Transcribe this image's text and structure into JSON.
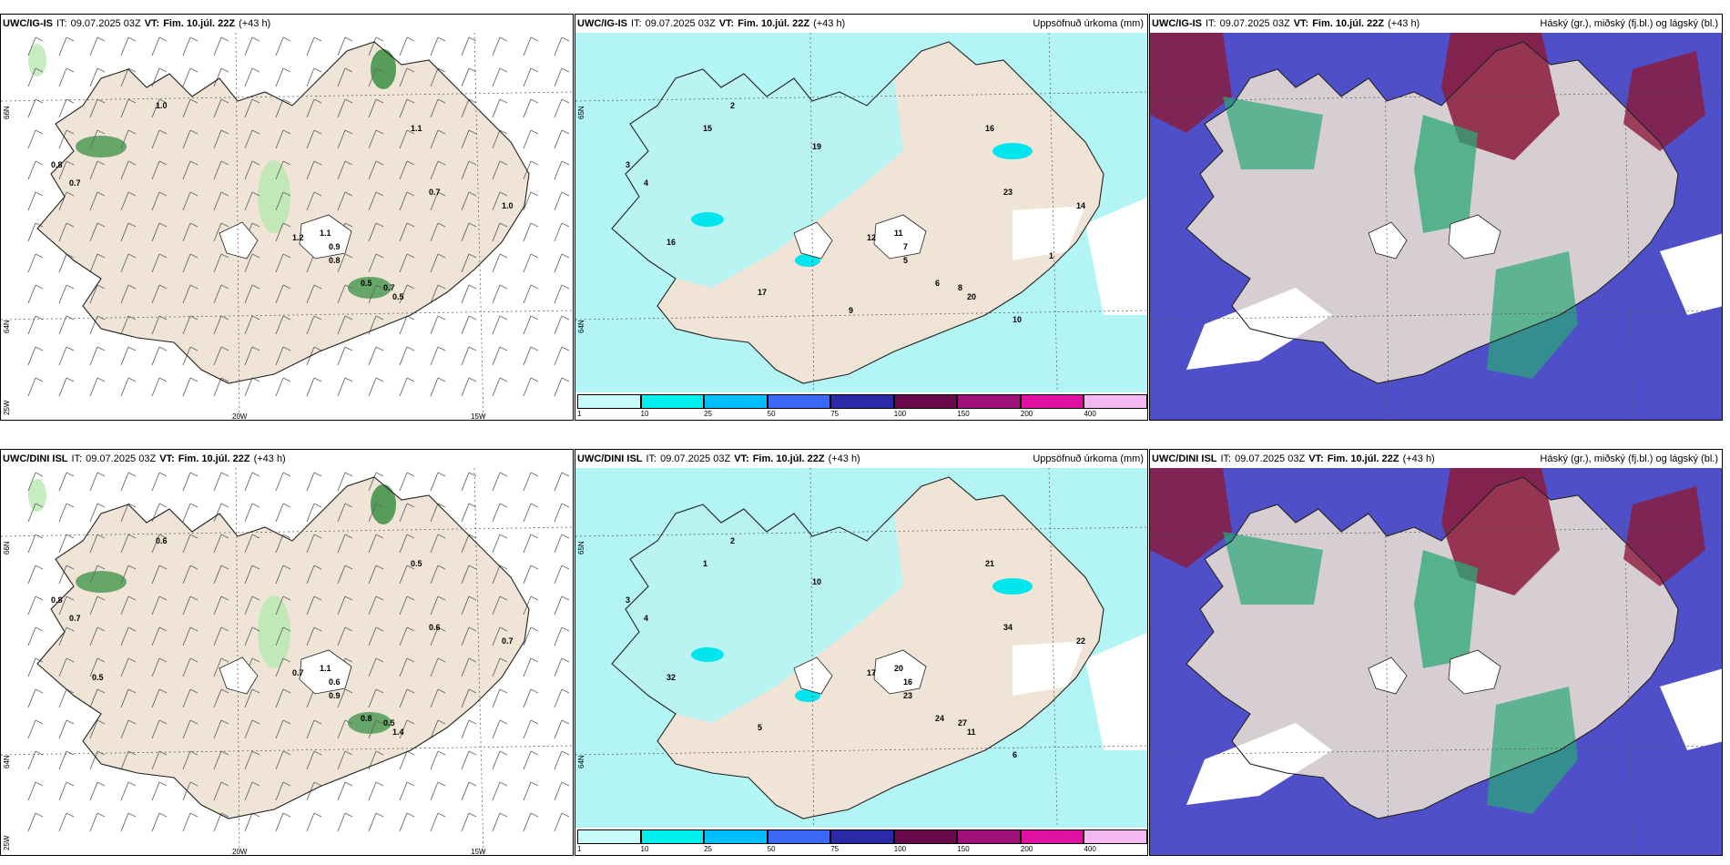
{
  "colors": {
    "land": "#efe4d6",
    "coast": "#222222",
    "precip_light": "#b3f5f5",
    "precip_mid": "#00e5ee",
    "green_light": "#b7e8b0",
    "green_dark": "#2e8b3a",
    "cloud_low": "#4f4fc9",
    "cloud_mid": "#2aa876",
    "cloud_high": "#8b1a3a"
  },
  "panels": [
    {
      "model": "UWC/IG-IS",
      "it_label": "IT:",
      "it_value": "09.07.2025 03Z",
      "vt_label": "VT:",
      "vt_value": "Fim. 10.júl. 22Z",
      "lead": "(+43 h)",
      "right_title": "",
      "type": "wind",
      "labels": [
        "1.0",
        "0.8",
        "0.7",
        "1.1",
        "0.7",
        "1.0",
        "1.1",
        "0.9",
        "0.8",
        "0.5",
        "0.7",
        "0.5",
        "1.2"
      ],
      "axes": {
        "lat1": "66N",
        "lat2": "64N",
        "lon1": "25W",
        "lon2": "20W",
        "lon3": "15W"
      }
    },
    {
      "model": "UWC/IG-IS",
      "it_label": "IT:",
      "it_value": "09.07.2025 03Z",
      "vt_label": "VT:",
      "vt_value": "Fim. 10.júl. 22Z",
      "lead": "(+43 h)",
      "right_title": "Uppsöfnuð úrkoma (mm)",
      "type": "precip",
      "labels": [
        "2",
        "3",
        "4",
        "16",
        "23",
        "14",
        "11",
        "7",
        "5",
        "6",
        "8",
        "20",
        "12",
        "16",
        "19",
        "17",
        "10",
        "15",
        "9",
        "1"
      ],
      "axes": {
        "lat1": "65N",
        "lat2": "64N"
      },
      "colorbar": [
        "1",
        "10",
        "25",
        "50",
        "75",
        "100",
        "150",
        "200",
        "400"
      ]
    },
    {
      "model": "UWC/IG-IS",
      "it_label": "IT:",
      "it_value": "09.07.2025 03Z",
      "vt_label": "VT:",
      "vt_value": "Fim. 10.júl. 22Z",
      "lead": "(+43 h)",
      "right_title": "Háský (gr.), miðský (fj.bl.) og lágský (bl.)",
      "type": "cloud"
    },
    {
      "model": "UWC/DINI ISL",
      "it_label": "IT:",
      "it_value": "09.07.2025 03Z",
      "vt_label": "VT:",
      "vt_value": "Fim. 10.júl. 22Z",
      "lead": "(+43 h)",
      "right_title": "",
      "type": "wind",
      "labels": [
        "0.6",
        "0.8",
        "0.7",
        "0.5",
        "0.6",
        "0.7",
        "1.1",
        "0.6",
        "0.9",
        "0.8",
        "0.5",
        "1.4",
        "0.7",
        "0.5"
      ],
      "axes": {
        "lat1": "66N",
        "lat2": "64N",
        "lon1": "25W",
        "lon2": "20W",
        "lon3": "15W"
      }
    },
    {
      "model": "UWC/DINI ISL",
      "it_label": "IT:",
      "it_value": "09.07.2025 03Z",
      "vt_label": "VT:",
      "vt_value": "Fim. 10.júl. 22Z",
      "lead": "(+43 h)",
      "right_title": "Uppsöfnuð úrkoma (mm)",
      "type": "precip",
      "labels": [
        "2",
        "3",
        "4",
        "21",
        "34",
        "22",
        "20",
        "16",
        "23",
        "24",
        "27",
        "11",
        "17",
        "32",
        "10",
        "5",
        "6",
        "1"
      ],
      "axes": {
        "lat1": "65N",
        "lat2": "64N"
      },
      "colorbar": [
        "1",
        "10",
        "25",
        "50",
        "75",
        "100",
        "150",
        "200",
        "400"
      ]
    },
    {
      "model": "UWC/DINI ISL",
      "it_label": "IT:",
      "it_value": "09.07.2025 03Z",
      "vt_label": "VT:",
      "vt_value": "Fim. 10.júl. 22Z",
      "lead": "(+43 h)",
      "right_title": "Háský (gr.), miðský (fj.bl.) og lágský (bl.)",
      "type": "cloud"
    }
  ]
}
